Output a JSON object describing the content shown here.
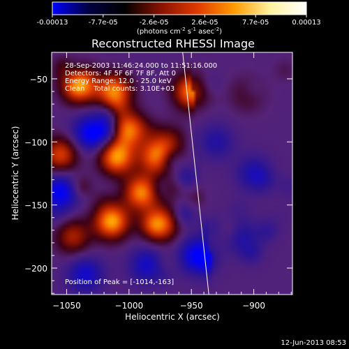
{
  "colorbar": {
    "ticks": [
      "-0.00013",
      "-7.7e-05",
      "-2.6e-05",
      "2.6e-05",
      "7.7e-05",
      "0.00013"
    ],
    "units_prefix": "(photons cm",
    "units_exp1": "-2",
    "units_mid": " s",
    "units_exp2": "-1",
    "units_mid2": " asec",
    "units_exp3": "-2",
    "units_suffix": ")",
    "stops": [
      "#0000ff",
      "#000040",
      "#000000",
      "#8a1200",
      "#e03a00",
      "#ff9a00",
      "#fff3a0",
      "#ffffff"
    ]
  },
  "chart_data": {
    "type": "heatmap",
    "title": "Reconstructed RHESSI Image",
    "xlabel": "Heliocentric X (arcsec)",
    "ylabel": "Heliocentric Y (arcsec)",
    "xlim": [
      -1062,
      -869
    ],
    "ylim": [
      -221,
      -29
    ],
    "xticks": [
      -1050,
      -1000,
      -950,
      -900
    ],
    "xtick_labels": [
      "−1050",
      "−1000",
      "−950",
      "−900"
    ],
    "yticks": [
      -50,
      -100,
      -150,
      -200
    ],
    "ytick_labels": [
      "−50",
      "−100",
      "−150",
      "−200"
    ],
    "limb_line": [
      [
        -957,
        -29
      ],
      [
        -936,
        -221
      ]
    ],
    "info_lines": [
      "28-Sep-2003 11:46:24.000 to 11:51:16.000",
      "Detectors: 4F 5F 6F 7F 8F, Att 0",
      "Energy Range: 12.0 - 25.0 keV",
      "Clean    Total counts: 3.10E+03"
    ],
    "peak_label": "Position of Peak = [-1014,-163]",
    "bright_sources": [
      {
        "x": -1040,
        "y": -55,
        "level": 1.0
      },
      {
        "x": -1012,
        "y": -60,
        "level": 0.9
      },
      {
        "x": -1000,
        "y": -90,
        "level": 0.85
      },
      {
        "x": -1010,
        "y": -112,
        "level": 0.95
      },
      {
        "x": -978,
        "y": -112,
        "level": 0.8
      },
      {
        "x": -990,
        "y": -140,
        "level": 0.9
      },
      {
        "x": -1014,
        "y": -163,
        "level": 1.0
      },
      {
        "x": -975,
        "y": -165,
        "level": 0.85
      },
      {
        "x": -1045,
        "y": -175,
        "level": 0.55
      },
      {
        "x": -1055,
        "y": -110,
        "level": 0.7
      },
      {
        "x": -950,
        "y": -60,
        "level": 0.9
      },
      {
        "x": -905,
        "y": -62,
        "level": 0.5
      },
      {
        "x": -968,
        "y": -100,
        "level": 0.4
      }
    ],
    "dark_regions": [
      {
        "x": -1030,
        "y": -92,
        "level": -0.8
      },
      {
        "x": -1055,
        "y": -140,
        "level": -0.7
      },
      {
        "x": -930,
        "y": -100,
        "level": -0.6
      },
      {
        "x": -900,
        "y": -125,
        "level": -0.7
      },
      {
        "x": -910,
        "y": -175,
        "level": -0.6
      },
      {
        "x": -945,
        "y": -190,
        "level": -0.7
      },
      {
        "x": -1035,
        "y": -205,
        "level": -0.5
      },
      {
        "x": -985,
        "y": -198,
        "level": -0.5
      }
    ]
  },
  "footer": {
    "timestamp": "12-Jun-2013 08:53"
  }
}
